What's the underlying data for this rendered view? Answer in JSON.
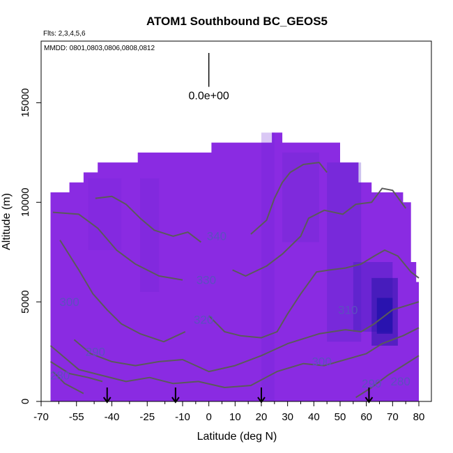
{
  "chart_data": {
    "type": "contour",
    "title": "ATOM1 Southbound BC_GEOS5",
    "flights_note": "Flts: 2,3,4,5,6",
    "dates_note": "MMDD: 0801,0803,0806,0808,0812",
    "xlabel": "Latitude (deg N)",
    "ylabel": "Altitude (m)",
    "xlim": [
      -70,
      80
    ],
    "ylim": [
      0,
      17500
    ],
    "x_tick_labels": [
      "-70",
      "-55",
      "-40",
      "-25",
      "-10",
      "0",
      "10",
      "20",
      "30",
      "40",
      "50",
      "60",
      "70",
      "80"
    ],
    "x_tick_values": [
      -70,
      -55,
      -40,
      -25,
      -10,
      0,
      10,
      20,
      30,
      40,
      50,
      60,
      70,
      80
    ],
    "y_tick_labels": [
      "0",
      "5000",
      "10000",
      "15000"
    ],
    "y_tick_values": [
      0,
      5000,
      10000,
      15000
    ],
    "colorbar_label": "0.0e+00",
    "colorbar_x": 0,
    "colorbar_y_range": [
      15800,
      17500
    ],
    "fill_color": "#8a2be2",
    "dark_color": "#1a0fa8",
    "contour_color": "#5a5a5a",
    "contour_labels": [
      {
        "text": "340",
        "x": 3,
        "y": 8100
      },
      {
        "text": "330",
        "x": -1,
        "y": 5900
      },
      {
        "text": "320",
        "x": -2,
        "y": 3900
      },
      {
        "text": "310",
        "x": 53,
        "y": 4400
      },
      {
        "text": "300",
        "x": 43,
        "y": 1800
      },
      {
        "text": "300",
        "x": -58,
        "y": 4800
      },
      {
        "text": "290",
        "x": -47,
        "y": 2300
      },
      {
        "text": "280",
        "x": -62,
        "y": 1100
      },
      {
        "text": "290",
        "x": 62,
        "y": 700
      },
      {
        "text": "280",
        "x": 73,
        "y": 800
      }
    ],
    "arrows_latitude": [
      -42,
      -13,
      20,
      61
    ],
    "curtain_profile": [
      [
        -66,
        10500
      ],
      [
        -58,
        10500
      ],
      [
        -58,
        11000
      ],
      [
        -52,
        11000
      ],
      [
        -52,
        11500
      ],
      [
        -46,
        11500
      ],
      [
        -46,
        12000
      ],
      [
        -29,
        12000
      ],
      [
        -29,
        12500
      ],
      [
        -22,
        12500
      ],
      [
        -22,
        12500
      ],
      [
        1,
        12500
      ],
      [
        1,
        13000
      ],
      [
        24,
        13000
      ],
      [
        24,
        13500
      ],
      [
        28,
        13500
      ],
      [
        28,
        13000
      ],
      [
        50,
        13000
      ],
      [
        50,
        12000
      ],
      [
        57,
        12000
      ],
      [
        57,
        11000
      ],
      [
        62,
        11000
      ],
      [
        62,
        10500
      ],
      [
        74,
        10500
      ],
      [
        74,
        10000
      ],
      [
        77,
        10000
      ],
      [
        77,
        7000
      ],
      [
        79,
        7000
      ],
      [
        79,
        6000
      ],
      [
        80,
        6000
      ],
      [
        80,
        0
      ],
      [
        -66,
        0
      ]
    ],
    "contours": [
      {
        "level": "340",
        "points": [
          [
            -47,
            10200
          ],
          [
            -40,
            10300
          ],
          [
            -34,
            9900
          ],
          [
            -28,
            9200
          ],
          [
            -22,
            8600
          ],
          [
            -14,
            8300
          ],
          [
            -8,
            8500
          ],
          [
            -3,
            8000
          ]
        ]
      },
      {
        "level": "330",
        "points": [
          [
            -65,
            9500
          ],
          [
            -54,
            9400
          ],
          [
            -46,
            8700
          ],
          [
            -38,
            7600
          ],
          [
            -30,
            6900
          ],
          [
            -20,
            6300
          ],
          [
            -10,
            6100
          ]
        ]
      },
      {
        "level": "320",
        "points": [
          [
            -62,
            8100
          ],
          [
            -54,
            6600
          ],
          [
            -48,
            5400
          ],
          [
            -42,
            4600
          ],
          [
            -36,
            3900
          ],
          [
            -28,
            3400
          ],
          [
            -18,
            3000
          ],
          [
            -9,
            3500
          ]
        ]
      },
      {
        "level": "right-340",
        "points": [
          [
            16,
            8400
          ],
          [
            22,
            9100
          ],
          [
            25,
            10200
          ],
          [
            28,
            11000
          ],
          [
            31,
            11500
          ],
          [
            36,
            11900
          ],
          [
            42,
            12000
          ],
          [
            45,
            11500
          ]
        ]
      },
      {
        "level": "right-330",
        "points": [
          [
            9,
            6600
          ],
          [
            14,
            6300
          ],
          [
            22,
            6800
          ],
          [
            28,
            7400
          ],
          [
            35,
            8300
          ],
          [
            38,
            9200
          ],
          [
            44,
            9600
          ],
          [
            51,
            9400
          ],
          [
            56,
            9900
          ],
          [
            62,
            10000
          ],
          [
            66,
            10700
          ],
          [
            70,
            10600
          ],
          [
            75,
            9700
          ]
        ]
      },
      {
        "level": "right-320",
        "points": [
          [
            0,
            4300
          ],
          [
            6,
            3500
          ],
          [
            12,
            3300
          ],
          [
            20,
            3200
          ],
          [
            26,
            3500
          ],
          [
            30,
            4400
          ],
          [
            35,
            5400
          ],
          [
            41,
            6500
          ],
          [
            46,
            6600
          ],
          [
            52,
            6700
          ],
          [
            58,
            6900
          ],
          [
            63,
            7300
          ],
          [
            67,
            7600
          ],
          [
            72,
            7300
          ],
          [
            77,
            6500
          ],
          [
            80,
            6200
          ]
        ]
      },
      {
        "level": "310",
        "points": [
          [
            -56,
            3100
          ],
          [
            -49,
            2400
          ],
          [
            -40,
            2000
          ],
          [
            -30,
            1800
          ],
          [
            -20,
            2000
          ],
          [
            -10,
            2100
          ],
          [
            0,
            1500
          ],
          [
            10,
            1800
          ],
          [
            20,
            2300
          ],
          [
            30,
            2900
          ],
          [
            42,
            3400
          ],
          [
            52,
            3600
          ],
          [
            58,
            3500
          ],
          [
            63,
            3900
          ],
          [
            70,
            4600
          ],
          [
            80,
            5000
          ]
        ]
      },
      {
        "level": "300",
        "points": [
          [
            -66,
            2800
          ],
          [
            -60,
            2200
          ],
          [
            -54,
            1600
          ],
          [
            -44,
            1300
          ],
          [
            -34,
            1000
          ],
          [
            -24,
            1200
          ],
          [
            -14,
            900
          ],
          [
            -4,
            1000
          ],
          [
            6,
            700
          ],
          [
            16,
            800
          ],
          [
            26,
            1500
          ],
          [
            36,
            1900
          ],
          [
            44,
            1800
          ],
          [
            52,
            2100
          ],
          [
            60,
            2400
          ],
          [
            66,
            2900
          ],
          [
            74,
            3300
          ],
          [
            80,
            3700
          ]
        ]
      },
      {
        "level": "290",
        "points": [
          [
            -66,
            2000
          ],
          [
            -58,
            1400
          ],
          [
            -50,
            1200
          ],
          [
            -44,
            1000
          ]
        ]
      },
      {
        "level": "280",
        "points": [
          [
            -65,
            1500
          ],
          [
            -60,
            900
          ],
          [
            -52,
            400
          ]
        ]
      },
      {
        "level": "right-280",
        "points": [
          [
            56,
            200
          ],
          [
            62,
            700
          ],
          [
            68,
            1300
          ],
          [
            74,
            1800
          ],
          [
            80,
            2300
          ]
        ]
      }
    ]
  }
}
